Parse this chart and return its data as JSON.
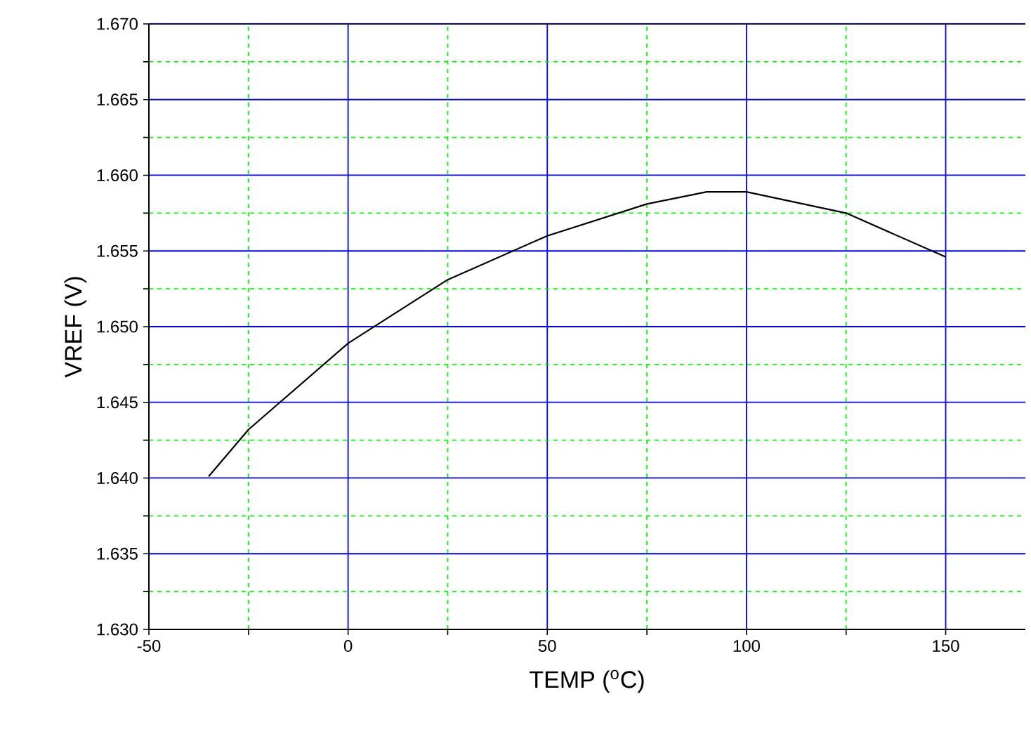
{
  "chart_data": {
    "type": "line",
    "xlabel": "TEMP ($^{o}$C)",
    "ylabel": "VREF (V)",
    "x": [
      -35,
      -25,
      0,
      25,
      50,
      75,
      90,
      100,
      125,
      150
    ],
    "series": [
      {
        "color": "#000000",
        "values": [
          1.6401,
          1.6432,
          1.6489,
          1.6531,
          1.656,
          1.6581,
          1.6589,
          1.6589,
          1.6575,
          1.6546
        ]
      }
    ],
    "xlim": [
      -50,
      170
    ],
    "ylim": [
      1.63,
      1.67
    ],
    "xticks": [
      -50,
      {
        "value": -25,
        "label": null
      },
      0,
      {
        "value": 25,
        "label": null
      },
      50,
      {
        "value": 75,
        "label": null
      },
      100,
      {
        "value": 125,
        "label": null
      },
      150
    ],
    "yticks": [
      {
        "value": 1.63,
        "label": "1.630"
      },
      {
        "value": 1.6325,
        "label": null
      },
      {
        "value": 1.635,
        "label": "1.635"
      },
      {
        "value": 1.6375,
        "label": null
      },
      {
        "value": 1.64,
        "label": "1.640"
      },
      {
        "value": 1.6425,
        "label": null
      },
      {
        "value": 1.645,
        "label": "1.645"
      },
      {
        "value": 1.6475,
        "label": null
      },
      {
        "value": 1.65,
        "label": "1.650"
      },
      {
        "value": 1.6525,
        "label": null
      },
      {
        "value": 1.655,
        "label": "1.655"
      },
      {
        "value": 1.6575,
        "label": null
      },
      {
        "value": 1.66,
        "label": "1.660"
      },
      {
        "value": 1.6625,
        "label": null
      },
      {
        "value": 1.665,
        "label": "1.665"
      },
      {
        "value": 1.6675,
        "label": null
      },
      {
        "value": 1.67,
        "label": "1.670"
      }
    ],
    "grid": true
  }
}
